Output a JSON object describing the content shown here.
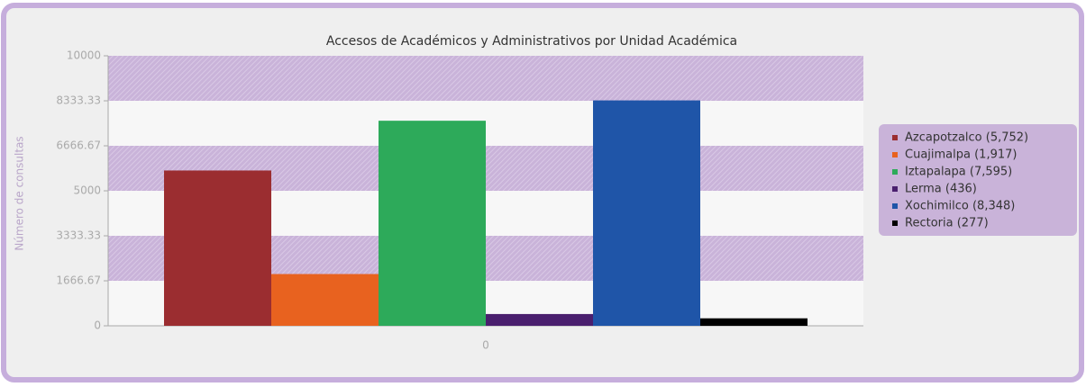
{
  "chart_data": {
    "type": "bar",
    "title": "Accesos de Académicos y Administrativos por Unidad Académica",
    "y_label": "Número de consultas",
    "categories": [
      "0"
    ],
    "series": [
      {
        "name": "Azcapotzalco (5,752)",
        "color": "#9b2d30",
        "values": [
          5752
        ]
      },
      {
        "name": "Cuajimalpa (1,917)",
        "color": "#e8621f",
        "values": [
          1917
        ]
      },
      {
        "name": "Iztapalapa (7,595)",
        "color": "#2daa5a",
        "values": [
          7595
        ]
      },
      {
        "name": "Lerma (436)",
        "color": "#4a1f6e",
        "values": [
          436
        ]
      },
      {
        "name": "Xochimilco (8,348)",
        "color": "#1f55a8",
        "values": [
          8348
        ]
      },
      {
        "name": "Rectoria (277)",
        "color": "#000000",
        "values": [
          277
        ]
      }
    ],
    "ylim": [
      0,
      10000
    ],
    "yticks": [
      0,
      1666.67,
      3333.33,
      5000,
      6666.67,
      8333.33,
      10000
    ],
    "grid": true,
    "legend": "right"
  }
}
